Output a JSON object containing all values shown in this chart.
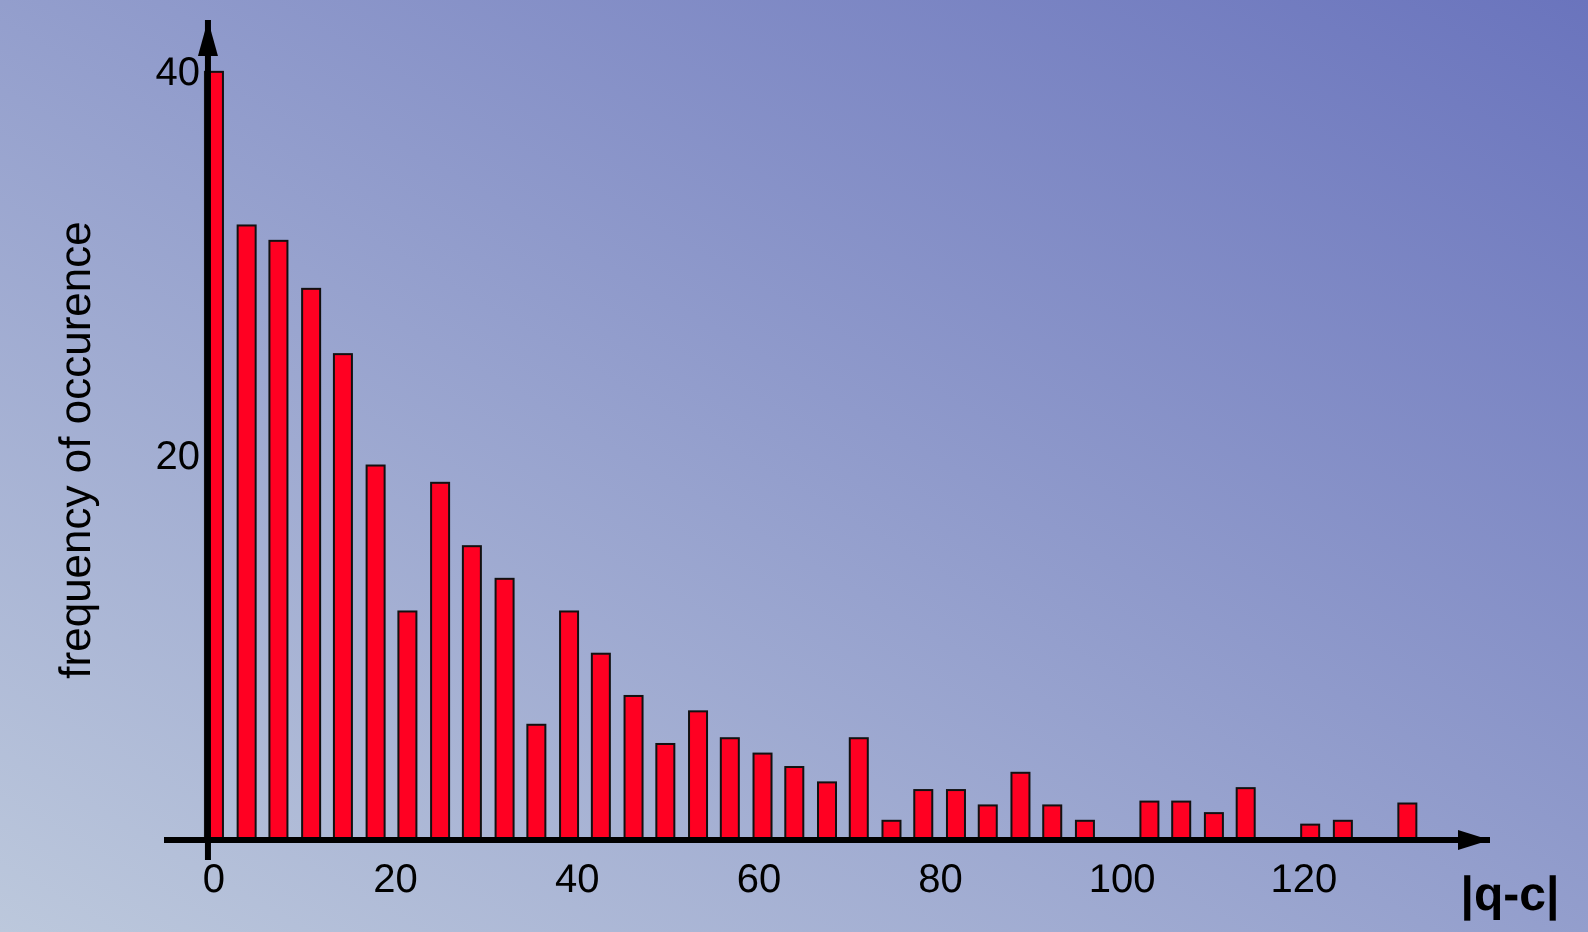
{
  "chart_data": {
    "type": "bar",
    "xlabel": "|q-c|",
    "ylabel": "frequency of occurence",
    "x": [
      0,
      3.6,
      7.1,
      10.7,
      14.2,
      17.8,
      21.3,
      24.9,
      28.4,
      32,
      35.5,
      39.1,
      42.6,
      46.2,
      49.7,
      53.3,
      56.8,
      60.4,
      63.9,
      67.5,
      71,
      74.6,
      78.1,
      81.7,
      85.2,
      88.8,
      92.3,
      95.9,
      103,
      106.5,
      110.1,
      113.6,
      120.7,
      124.3,
      131.4
    ],
    "values": [
      40,
      32,
      31.2,
      28.7,
      25.3,
      19.5,
      11.9,
      18.6,
      15.3,
      13.6,
      6,
      11.9,
      9.7,
      7.5,
      5,
      6.7,
      5.3,
      4.5,
      3.8,
      3,
      5.3,
      1,
      2.6,
      2.6,
      1.8,
      3.5,
      1.8,
      1,
      2,
      2,
      1.4,
      2.7,
      0.8,
      1,
      1.9
    ],
    "color": "#ff0022",
    "xlim": [
      -5.5,
      140.5
    ],
    "xticks": [
      0,
      20,
      40,
      60,
      80,
      100,
      120
    ],
    "ylim": [
      0,
      42.7
    ],
    "yticks": [
      20,
      40
    ],
    "grid": false
  }
}
